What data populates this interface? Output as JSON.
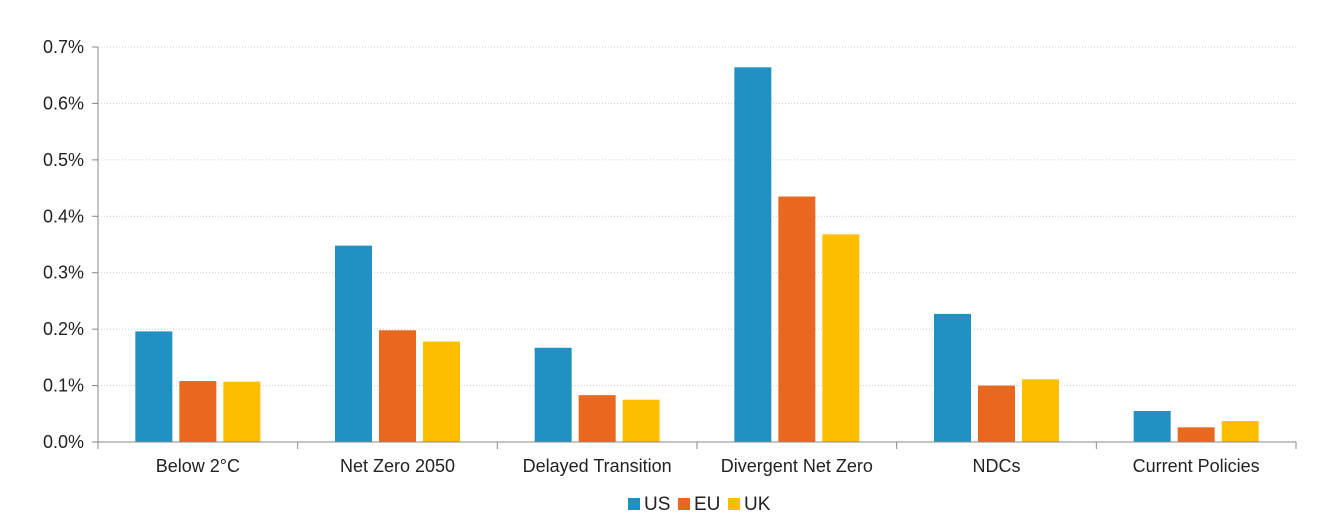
{
  "chart_data": {
    "type": "bar",
    "categories": [
      "Below 2°C",
      "Net Zero 2050",
      "Delayed Transition",
      "Divergent Net Zero",
      "NDCs",
      "Current Policies"
    ],
    "series": [
      {
        "name": "US",
        "color": "#2191C3",
        "values": [
          0.196,
          0.348,
          0.167,
          0.664,
          0.227,
          0.055
        ]
      },
      {
        "name": "EU",
        "color": "#E8681F",
        "values": [
          0.108,
          0.198,
          0.083,
          0.435,
          0.1,
          0.026
        ]
      },
      {
        "name": "UK",
        "color": "#FDBE00",
        "values": [
          0.107,
          0.178,
          0.075,
          0.368,
          0.111,
          0.037
        ]
      }
    ],
    "y_ticks": [
      "0.0%",
      "0.1%",
      "0.2%",
      "0.3%",
      "0.4%",
      "0.5%",
      "0.6%",
      "0.7%"
    ],
    "ylim": [
      0,
      0.7
    ],
    "grid": "horizontal dotted",
    "legend_position": "bottom-center"
  }
}
